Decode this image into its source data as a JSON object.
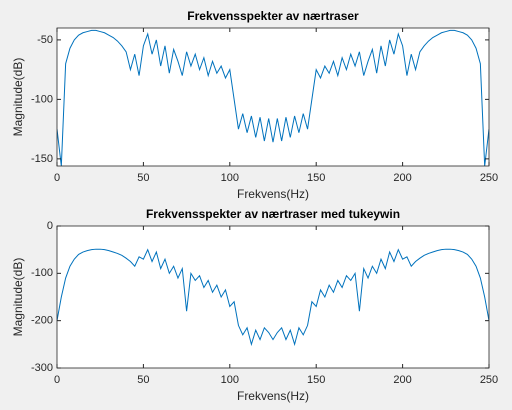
{
  "chart_data": [
    {
      "type": "line",
      "title": "Frekvensspekter av nærtraser",
      "xlabel": "Frekvens(Hz)",
      "ylabel": "Magnitude(dB)",
      "color": "#0072bd",
      "xlim": [
        0,
        250
      ],
      "ylim": [
        -156,
        -40
      ],
      "xticks": [
        0,
        50,
        100,
        150,
        200,
        250
      ],
      "yticks": [
        -150,
        -100,
        -50
      ],
      "x": [
        0,
        2.5,
        5,
        7.5,
        10,
        12.5,
        15,
        17.5,
        20,
        22.5,
        25,
        27.5,
        30,
        32.5,
        35,
        37.5,
        40,
        42.5,
        45,
        47.5,
        50,
        52.5,
        55,
        57.5,
        60,
        62.5,
        65,
        67.5,
        70,
        72.5,
        75,
        77.5,
        80,
        82.5,
        85,
        87.5,
        90,
        92.5,
        95,
        97.5,
        100,
        102.5,
        105,
        107.5,
        110,
        112.5,
        115,
        117.5,
        120,
        122.5,
        125,
        127.5,
        130,
        132.5,
        135,
        137.5,
        140,
        142.5,
        145,
        147.5,
        150,
        152.5,
        155,
        157.5,
        160,
        162.5,
        165,
        167.5,
        170,
        172.5,
        175,
        177.5,
        180,
        182.5,
        185,
        187.5,
        190,
        192.5,
        195,
        197.5,
        200,
        202.5,
        205,
        207.5,
        210,
        212.5,
        215,
        217.5,
        220,
        222.5,
        225,
        227.5,
        230,
        232.5,
        235,
        237.5,
        240,
        242.5,
        245,
        247.5,
        250
      ],
      "values": [
        -125,
        -156,
        -70,
        -57,
        -50,
        -46,
        -44,
        -43,
        -42,
        -42,
        -43,
        -44,
        -46,
        -48,
        -51,
        -55,
        -60,
        -75,
        -62,
        -80,
        -55,
        -45,
        -62,
        -50,
        -72,
        -55,
        -78,
        -58,
        -68,
        -80,
        -60,
        -72,
        -62,
        -75,
        -65,
        -80,
        -68,
        -78,
        -72,
        -82,
        -75,
        -100,
        -125,
        -112,
        -128,
        -114,
        -132,
        -115,
        -135,
        -116,
        -136,
        -116,
        -135,
        -115,
        -132,
        -114,
        -128,
        -112,
        -125,
        -100,
        -75,
        -82,
        -72,
        -78,
        -68,
        -80,
        -65,
        -75,
        -62,
        -72,
        -60,
        -80,
        -68,
        -58,
        -78,
        -55,
        -72,
        -50,
        -62,
        -45,
        -55,
        -80,
        -62,
        -75,
        -60,
        -55,
        -51,
        -48,
        -46,
        -44,
        -43,
        -42,
        -42,
        -43,
        -44,
        -46,
        -50,
        -57,
        -70,
        -156,
        -125
      ]
    },
    {
      "type": "line",
      "title": "Frekvensspekter av nærtraser med tukeywin",
      "xlabel": "Frekvens(Hz)",
      "ylabel": "Magnitude(dB)",
      "color": "#0072bd",
      "xlim": [
        0,
        250
      ],
      "ylim": [
        -300,
        0
      ],
      "xticks": [
        0,
        50,
        100,
        150,
        200,
        250
      ],
      "yticks": [
        -300,
        -200,
        -100,
        0
      ],
      "x": [
        0,
        2.5,
        5,
        7.5,
        10,
        12.5,
        15,
        17.5,
        20,
        22.5,
        25,
        27.5,
        30,
        32.5,
        35,
        37.5,
        40,
        42.5,
        45,
        47.5,
        50,
        52.5,
        55,
        57.5,
        60,
        62.5,
        65,
        67.5,
        70,
        72.5,
        75,
        77.5,
        80,
        82.5,
        85,
        87.5,
        90,
        92.5,
        95,
        97.5,
        100,
        102.5,
        105,
        107.5,
        110,
        112.5,
        115,
        117.5,
        120,
        122.5,
        125,
        127.5,
        130,
        132.5,
        135,
        137.5,
        140,
        142.5,
        145,
        147.5,
        150,
        152.5,
        155,
        157.5,
        160,
        162.5,
        165,
        167.5,
        170,
        172.5,
        175,
        177.5,
        180,
        182.5,
        185,
        187.5,
        190,
        192.5,
        195,
        197.5,
        200,
        202.5,
        205,
        207.5,
        210,
        212.5,
        215,
        217.5,
        220,
        222.5,
        225,
        227.5,
        230,
        232.5,
        235,
        237.5,
        240,
        242.5,
        245,
        247.5,
        250
      ],
      "values": [
        -200,
        -150,
        -110,
        -85,
        -70,
        -60,
        -55,
        -52,
        -50,
        -49,
        -49,
        -50,
        -52,
        -55,
        -58,
        -62,
        -68,
        -75,
        -85,
        -65,
        -70,
        -50,
        -75,
        -55,
        -90,
        -70,
        -100,
        -85,
        -110,
        -90,
        -180,
        -100,
        -115,
        -105,
        -130,
        -115,
        -140,
        -125,
        -150,
        -135,
        -170,
        -160,
        -210,
        -230,
        -215,
        -250,
        -220,
        -240,
        -215,
        -225,
        -240,
        -225,
        -215,
        -240,
        -220,
        -250,
        -215,
        -230,
        -210,
        -160,
        -170,
        -135,
        -150,
        -125,
        -140,
        -115,
        -130,
        -105,
        -115,
        -100,
        -180,
        -90,
        -110,
        -85,
        -100,
        -70,
        -90,
        -55,
        -75,
        -50,
        -70,
        -65,
        -85,
        -75,
        -68,
        -62,
        -58,
        -55,
        -52,
        -50,
        -49,
        -49,
        -50,
        -52,
        -55,
        -60,
        -70,
        -85,
        -110,
        -150,
        -200
      ]
    }
  ]
}
